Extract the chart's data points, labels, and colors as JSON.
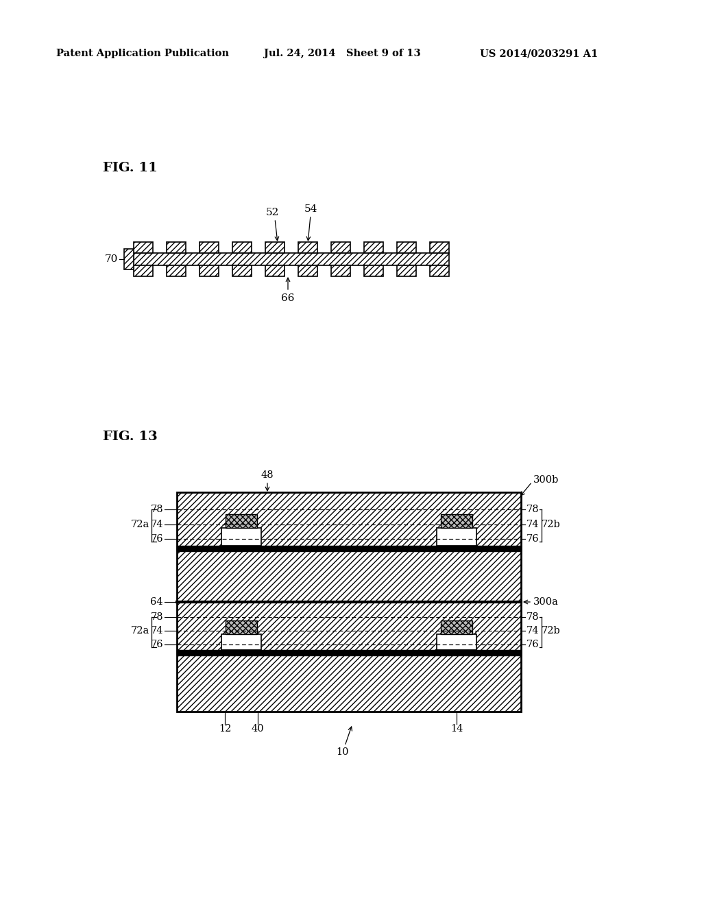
{
  "bg_color": "#ffffff",
  "header_left": "Patent Application Publication",
  "header_mid": "Jul. 24, 2014   Sheet 9 of 13",
  "header_right": "US 2014/0203291 A1",
  "fig11_label": "FIG. 11",
  "fig13_label": "FIG. 13",
  "lc": "#000000"
}
